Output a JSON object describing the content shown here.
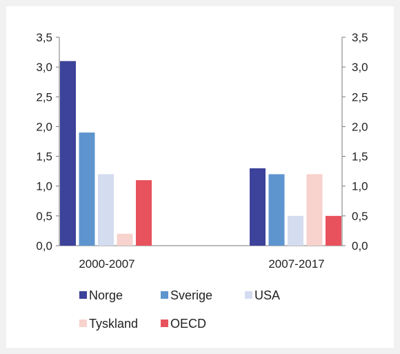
{
  "chart_data": {
    "type": "bar",
    "categories": [
      "2000-2007",
      "2007-2017"
    ],
    "series": [
      {
        "name": "Norge",
        "values": [
          3.1,
          1.3
        ],
        "color": "#3d429a"
      },
      {
        "name": "Sverige",
        "values": [
          1.9,
          1.2
        ],
        "color": "#5f95cf"
      },
      {
        "name": "USA",
        "values": [
          1.2,
          0.5
        ],
        "color": "#d4dcf0"
      },
      {
        "name": "Tyskland",
        "values": [
          0.2,
          1.2
        ],
        "color": "#f8d2cd"
      },
      {
        "name": "OECD",
        "values": [
          1.1,
          0.5
        ],
        "color": "#e8525c"
      }
    ],
    "ylim": [
      0,
      3.5
    ],
    "yticks": [
      "0,0",
      "0,5",
      "1,0",
      "1,5",
      "2,0",
      "2,5",
      "3,0",
      "3,5"
    ],
    "dual_y_axis": true,
    "grid": false,
    "legend_position": "bottom"
  }
}
